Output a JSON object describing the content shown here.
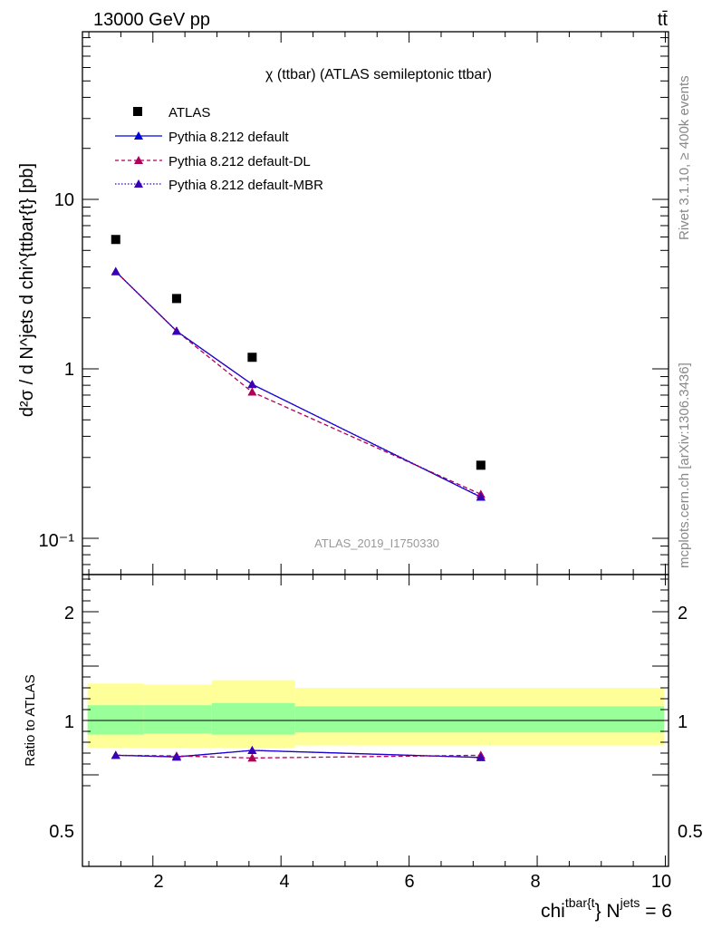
{
  "header": {
    "energy": "13000 GeV pp",
    "process": "tt̄"
  },
  "side": {
    "rivet": "Rivet 3.1.10, ≥ 400k events",
    "source": "mcplots.cern.ch [arXiv:1306.3436]"
  },
  "chart_data": [
    {
      "type": "line",
      "panel": "main",
      "title": "χ (ttbar) (ATLAS semileptonic ttbar)",
      "watermark": "ATLAS_2019_I1750330",
      "ylabel": "d²σ / d N^jets d chi^{ttbar{t} [pb]",
      "yscale": "log",
      "xlim": [
        0.9,
        10.05
      ],
      "ylim": [
        0.065,
        100
      ],
      "ytick_labels": {
        "y10": "10",
        "y1": "1",
        "y01": "10⁻¹"
      },
      "x": [
        1.42,
        2.37,
        3.55,
        7.12
      ],
      "series": [
        {
          "name": "ATLAS",
          "style": "marker-square",
          "color": "#000000",
          "values": [
            5.8,
            2.6,
            1.17,
            0.27
          ]
        },
        {
          "name": "Pythia 8.212 default",
          "style": "solid",
          "color": "#0000dd",
          "values": [
            3.75,
            1.67,
            0.81,
            0.175
          ]
        },
        {
          "name": "Pythia 8.212 default-DL",
          "style": "dashed",
          "color": "#b0005a",
          "values": [
            3.75,
            1.67,
            0.73,
            0.182
          ]
        },
        {
          "name": "Pythia 8.212 default-MBR",
          "style": "dotted",
          "color": "#3a00b8",
          "values": [
            3.75,
            1.67,
            0.81,
            0.176
          ]
        }
      ]
    },
    {
      "type": "line",
      "panel": "ratio",
      "ylabel": "Ratio to ATLAS",
      "xlabel": "chi^{ttbar{t}} N^{jets} = 6",
      "xlabel_parts": {
        "base": "chi",
        "sup1": "tbar{t",
        "mid": "} N",
        "sup2": "jets",
        "end": " = 6"
      },
      "ylim": [
        0.38,
        2.4
      ],
      "ytick_labels": {
        "r2": "2",
        "r1": "1",
        "r05": "0.5"
      },
      "xtick_labels": [
        "2",
        "4",
        "6",
        "8",
        "10"
      ],
      "bands": [
        {
          "x0": 0.98,
          "x1": 1.86,
          "yellow": [
            0.75,
            1.34
          ],
          "green": [
            0.87,
            1.14
          ]
        },
        {
          "x0": 1.86,
          "x1": 2.92,
          "yellow": [
            0.75,
            1.33
          ],
          "green": [
            0.88,
            1.14
          ]
        },
        {
          "x0": 2.92,
          "x1": 4.22,
          "yellow": [
            0.75,
            1.37
          ],
          "green": [
            0.87,
            1.16
          ]
        },
        {
          "x0": 4.22,
          "x1": 9.98,
          "yellow": [
            0.77,
            1.3
          ],
          "green": [
            0.89,
            1.13
          ]
        }
      ],
      "x": [
        1.42,
        2.37,
        3.55,
        7.12
      ],
      "series": [
        {
          "name": "Pythia 8.212 default",
          "color": "#0000dd",
          "values": [
            0.68,
            0.665,
            0.725,
            0.66
          ],
          "errors": [
            0.01,
            0.012,
            0.016,
            0.014
          ]
        },
        {
          "name": "Pythia 8.212 default-DL",
          "color": "#b0005a",
          "values": [
            0.68,
            0.674,
            0.655,
            0.68
          ],
          "errors": [
            0.01,
            0.012,
            0.014,
            0.014
          ]
        },
        {
          "name": "Pythia 8.212 default-MBR",
          "color": "#3a00b8",
          "values": [
            0.68,
            0.665,
            0.725,
            0.66
          ],
          "errors": [
            0.01,
            0.012,
            0.016,
            0.014
          ]
        }
      ]
    }
  ]
}
